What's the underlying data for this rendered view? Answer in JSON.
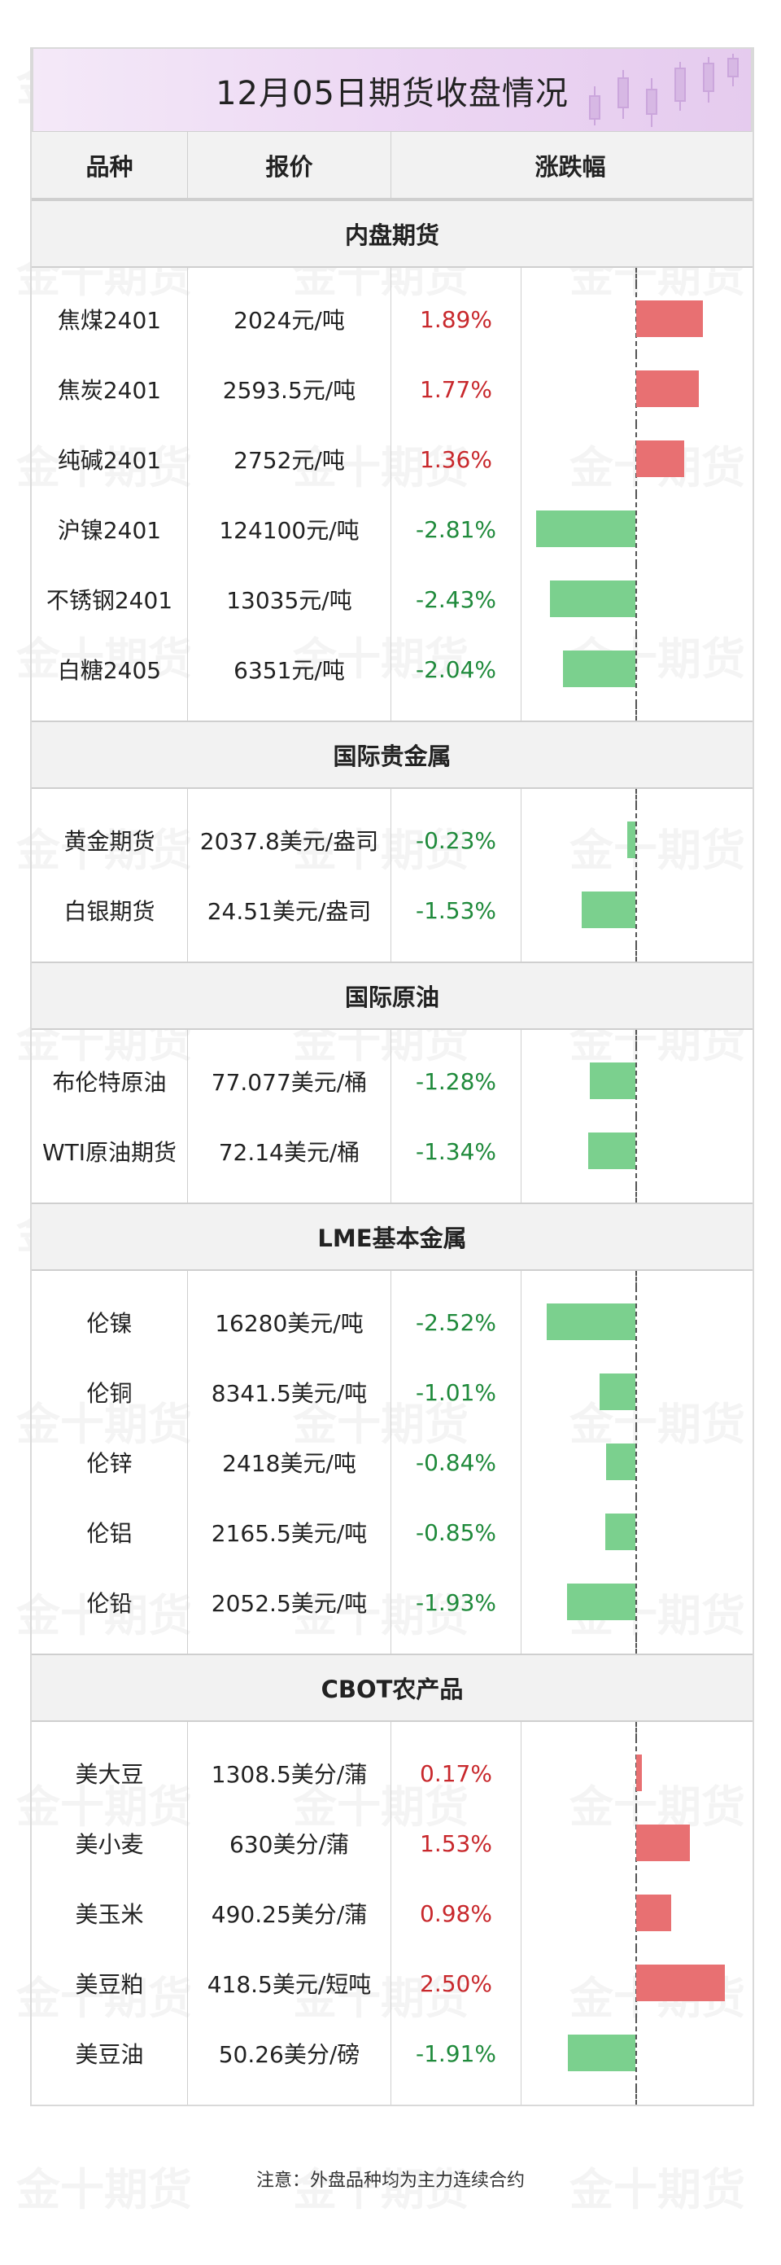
{
  "title": "12月05日期货收盘情况",
  "watermark_text": "金十期货",
  "headers": {
    "variety": "品种",
    "price": "报价",
    "change": "涨跌幅"
  },
  "colors": {
    "up": "#e87072",
    "down": "#7bd08e",
    "up_text": "#c8282c",
    "down_text": "#1f8a3b",
    "title_bg": "#ecd6f3"
  },
  "sections": [
    {
      "name": "内盘期货",
      "rows": [
        {
          "variety": "焦煤2401",
          "price": "2024元/吨",
          "change_text": "1.89%",
          "change": 1.89
        },
        {
          "variety": "焦炭2401",
          "price": "2593.5元/吨",
          "change_text": "1.77%",
          "change": 1.77
        },
        {
          "variety": "纯碱2401",
          "price": "2752元/吨",
          "change_text": "1.36%",
          "change": 1.36
        },
        {
          "variety": "沪镍2401",
          "price": "124100元/吨",
          "change_text": "-2.81%",
          "change": -2.81
        },
        {
          "variety": "不锈钢2401",
          "price": "13035元/吨",
          "change_text": "-2.43%",
          "change": -2.43
        },
        {
          "variety": "白糖2405",
          "price": "6351元/吨",
          "change_text": "-2.04%",
          "change": -2.04
        }
      ]
    },
    {
      "name": "国际贵金属",
      "rows": [
        {
          "variety": "黄金期货",
          "price": "2037.8美元/盎司",
          "change_text": "-0.23%",
          "change": -0.23
        },
        {
          "variety": "白银期货",
          "price": "24.51美元/盎司",
          "change_text": "-1.53%",
          "change": -1.53
        }
      ]
    },
    {
      "name": "国际原油",
      "rows": [
        {
          "variety": "布伦特原油",
          "price": "77.077美元/桶",
          "change_text": "-1.28%",
          "change": -1.28
        },
        {
          "variety": "WTI原油期货",
          "price": "72.14美元/桶",
          "change_text": "-1.34%",
          "change": -1.34
        }
      ]
    },
    {
      "name": "LME基本金属",
      "rows": [
        {
          "variety": "伦镍",
          "price": "16280美元/吨",
          "change_text": "-2.52%",
          "change": -2.52
        },
        {
          "variety": "伦铜",
          "price": "8341.5美元/吨",
          "change_text": "-1.01%",
          "change": -1.01
        },
        {
          "variety": "伦锌",
          "price": "2418美元/吨",
          "change_text": "-0.84%",
          "change": -0.84
        },
        {
          "variety": "伦铝",
          "price": "2165.5美元/吨",
          "change_text": "-0.85%",
          "change": -0.85
        },
        {
          "variety": "伦铅",
          "price": "2052.5美元/吨",
          "change_text": "-1.93%",
          "change": -1.93
        }
      ]
    },
    {
      "name": "CBOT农产品",
      "rows": [
        {
          "variety": "美大豆",
          "price": "1308.5美分/蒲",
          "change_text": "0.17%",
          "change": 0.17
        },
        {
          "variety": "美小麦",
          "price": "630美分/蒲",
          "change_text": "1.53%",
          "change": 1.53
        },
        {
          "variety": "美玉米",
          "price": "490.25美分/蒲",
          "change_text": "0.98%",
          "change": 0.98
        },
        {
          "variety": "美豆粕",
          "price": "418.5美元/短吨",
          "change_text": "2.50%",
          "change": 2.5
        },
        {
          "variety": "美豆油",
          "price": "50.26美分/磅",
          "change_text": "-1.91%",
          "change": -1.91
        }
      ]
    }
  ],
  "footer": "注意：外盘品种均为主力连续合约"
}
